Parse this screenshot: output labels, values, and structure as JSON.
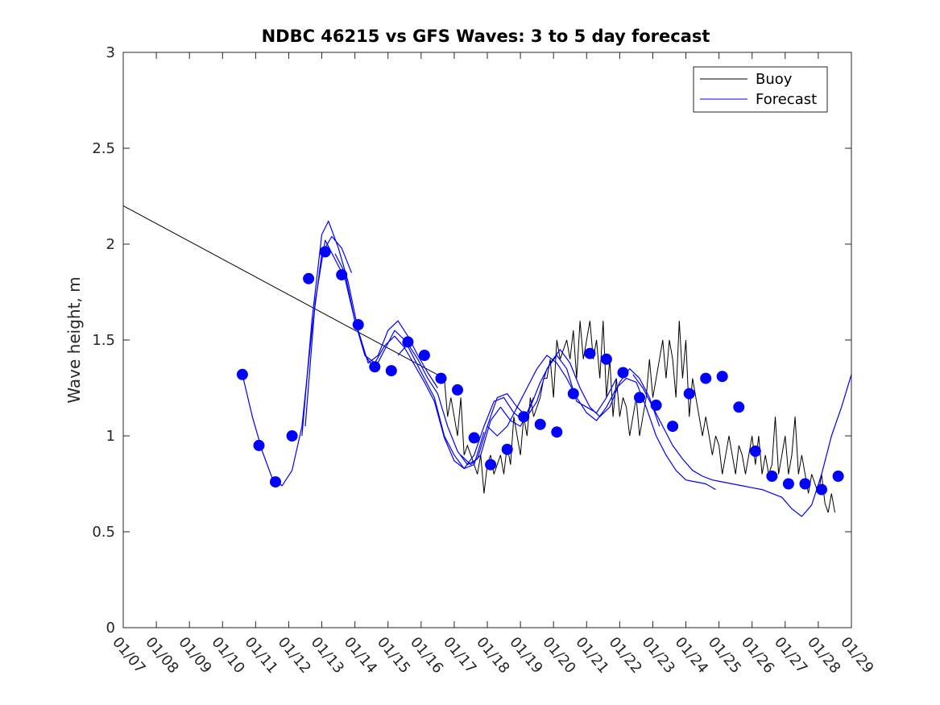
{
  "chart_data": {
    "type": "line",
    "title": "NDBC 46215 vs GFS Waves: 3 to 5 day forecast",
    "ylabel": "Wave height, m",
    "xlabel": "",
    "xlim": [
      0,
      22
    ],
    "ylim": [
      0,
      3
    ],
    "x_tick_values": [
      0,
      1,
      2,
      3,
      4,
      5,
      6,
      7,
      8,
      9,
      10,
      11,
      12,
      13,
      14,
      15,
      16,
      17,
      18,
      19,
      20,
      21,
      22
    ],
    "x_tick_labels": [
      "01/07",
      "01/08",
      "01/09",
      "01/10",
      "01/11",
      "01/12",
      "01/13",
      "01/14",
      "01/15",
      "01/16",
      "01/17",
      "01/18",
      "01/19",
      "01/20",
      "01/21",
      "01/22",
      "01/23",
      "01/24",
      "01/25",
      "01/26",
      "01/27",
      "01/28",
      "01/29"
    ],
    "y_tick_values": [
      0,
      0.5,
      1,
      1.5,
      2,
      2.5,
      3
    ],
    "y_tick_labels": [
      "0",
      "0.5",
      "1",
      "1.5",
      "2",
      "2.5",
      "3"
    ],
    "legend": {
      "location": "top-right",
      "entries": [
        "Buoy",
        "Forecast"
      ]
    },
    "colors": {
      "buoy": "#000000",
      "forecast": "#0000ff",
      "axes": "#262626"
    },
    "series": [
      {
        "name": "Buoy",
        "color": "#000000",
        "x": [
          0,
          9.7,
          9.8,
          9.9,
          10.0,
          10.1,
          10.2,
          10.3,
          10.4,
          10.5,
          10.6,
          10.7,
          10.8,
          10.9,
          11.0,
          11.1,
          11.2,
          11.3,
          11.4,
          11.5,
          11.6,
          11.7,
          11.8,
          11.9,
          12.0,
          12.1,
          12.2,
          12.3,
          12.4,
          12.5,
          12.6,
          12.7,
          12.8,
          12.9,
          13.0,
          13.1,
          13.2,
          13.3,
          13.4,
          13.5,
          13.6,
          13.7,
          13.8,
          13.9,
          14.0,
          14.1,
          14.2,
          14.3,
          14.4,
          14.5,
          14.6,
          14.7,
          14.8,
          14.9,
          15.0,
          15.1,
          15.2,
          15.3,
          15.4,
          15.5,
          15.6,
          15.7,
          15.8,
          15.9,
          16.0,
          16.1,
          16.2,
          16.3,
          16.4,
          16.5,
          16.6,
          16.7,
          16.8,
          16.9,
          17.0,
          17.1,
          17.2,
          17.3,
          17.4,
          17.5,
          17.6,
          17.7,
          17.8,
          17.9,
          18.0,
          18.1,
          18.2,
          18.3,
          18.4,
          18.5,
          18.6,
          18.7,
          18.8,
          18.9,
          19.0,
          19.1,
          19.2,
          19.3,
          19.4,
          19.5,
          19.6,
          19.7,
          19.8,
          19.9,
          20.0,
          20.1,
          20.2,
          20.3,
          20.4,
          20.5,
          20.6,
          20.7,
          20.8,
          20.9,
          21.0,
          21.1,
          21.2,
          21.3,
          21.4,
          21.5
        ],
        "values": [
          2.2,
          1.3,
          1.1,
          1.2,
          1.1,
          1.0,
          1.2,
          0.9,
          0.95,
          0.9,
          0.85,
          0.8,
          0.9,
          0.7,
          0.85,
          0.9,
          0.8,
          0.85,
          0.9,
          0.8,
          0.95,
          0.85,
          1.1,
          1.0,
          0.9,
          1.1,
          1.0,
          1.2,
          1.1,
          1.15,
          1.2,
          1.3,
          1.3,
          1.4,
          1.2,
          1.5,
          1.4,
          1.45,
          1.5,
          1.4,
          1.55,
          1.3,
          1.6,
          1.4,
          1.5,
          1.6,
          1.4,
          1.5,
          1.3,
          1.6,
          1.2,
          1.4,
          1.1,
          1.3,
          1.1,
          1.2,
          1.15,
          1.0,
          1.1,
          1.2,
          1.0,
          1.1,
          1.2,
          1.4,
          1.2,
          1.3,
          1.4,
          1.5,
          1.3,
          1.5,
          1.4,
          1.2,
          1.6,
          1.3,
          1.5,
          1.1,
          1.3,
          1.2,
          1.1,
          1.0,
          1.1,
          1.0,
          0.9,
          1.0,
          0.95,
          0.8,
          0.9,
          1.0,
          0.9,
          0.8,
          0.95,
          0.9,
          0.8,
          0.9,
          1.0,
          0.85,
          1.0,
          0.8,
          0.9,
          0.8,
          0.85,
          1.1,
          0.8,
          0.9,
          1.0,
          0.8,
          0.9,
          1.1,
          0.8,
          0.9,
          0.8,
          0.7,
          0.8,
          0.75,
          0.7,
          0.8,
          0.65,
          0.6,
          0.7,
          0.6
        ]
      },
      {
        "name": "Forecast",
        "color": "#0000ff",
        "lines": [
          {
            "x": [
              3.6,
              3.9,
              4.2,
              4.5,
              4.8,
              5.1,
              5.4,
              5.7,
              6.0,
              6.3,
              6.6,
              6.9
            ],
            "values": [
              1.32,
              1.1,
              0.92,
              0.78,
              0.74,
              0.82,
              1.05,
              1.55,
              1.95,
              2.04,
              1.98,
              1.85
            ]
          },
          {
            "x": [
              5.4,
              5.7,
              6.0,
              6.2,
              6.5,
              6.8,
              7.1,
              7.4,
              7.7,
              8.0,
              8.3,
              8.6,
              8.9,
              9.2,
              9.5
            ],
            "values": [
              1.0,
              1.6,
              2.05,
              2.12,
              1.98,
              1.8,
              1.55,
              1.38,
              1.42,
              1.55,
              1.6,
              1.52,
              1.42,
              1.33,
              1.25
            ]
          },
          {
            "x": [
              5.5,
              5.8,
              6.1,
              6.4,
              6.7,
              7.0,
              7.3,
              7.6,
              7.9,
              8.2,
              8.5,
              8.8,
              9.1,
              9.4,
              9.7,
              10.0,
              10.3,
              10.6,
              10.9
            ],
            "values": [
              1.05,
              1.7,
              2.02,
              1.92,
              1.82,
              1.6,
              1.42,
              1.35,
              1.45,
              1.55,
              1.5,
              1.4,
              1.3,
              1.2,
              1.0,
              0.9,
              0.83,
              0.85,
              1.02
            ]
          },
          {
            "x": [
              6.4,
              6.7,
              7.0,
              7.3,
              7.6,
              7.9,
              8.2,
              8.5,
              8.8,
              9.1,
              9.4,
              9.7,
              10.0,
              10.3,
              10.6,
              10.9,
              11.2,
              11.5,
              11.8,
              12.1,
              12.4
            ],
            "values": [
              1.95,
              1.85,
              1.6,
              1.42,
              1.38,
              1.47,
              1.52,
              1.46,
              1.37,
              1.28,
              1.18,
              0.99,
              0.87,
              0.83,
              0.9,
              1.05,
              1.18,
              1.2,
              1.12,
              1.08,
              1.2
            ]
          },
          {
            "x": [
              8.3,
              8.6,
              8.9,
              9.2,
              9.5,
              9.8,
              10.1,
              10.4,
              10.7,
              11.0,
              11.3,
              11.6,
              11.9,
              12.2,
              12.5,
              12.8,
              13.1,
              13.4,
              13.7,
              14.0,
              14.3,
              14.6,
              14.9
            ],
            "values": [
              1.42,
              1.48,
              1.4,
              1.3,
              1.22,
              1.05,
              0.92,
              0.85,
              0.88,
              1.05,
              1.2,
              1.22,
              1.15,
              1.1,
              1.18,
              1.35,
              1.42,
              1.35,
              1.18,
              1.15,
              1.12,
              1.2,
              1.3
            ]
          },
          {
            "x": [
              10.2,
              10.5,
              10.8,
              11.1,
              11.4,
              11.7,
              12.0,
              12.3,
              12.6,
              12.9,
              13.2,
              13.5,
              13.8,
              14.1,
              14.4,
              14.7,
              15.0,
              15.3,
              15.6,
              15.9,
              16.2
            ],
            "values": [
              0.9,
              0.85,
              0.9,
              1.08,
              1.15,
              1.08,
              1.05,
              1.15,
              1.28,
              1.38,
              1.45,
              1.38,
              1.25,
              1.15,
              1.1,
              1.15,
              1.28,
              1.35,
              1.3,
              1.2,
              1.05
            ]
          },
          {
            "x": [
              11.0,
              11.3,
              11.6,
              11.9,
              12.2,
              12.5,
              12.8,
              13.1,
              13.4,
              13.7,
              14.0,
              14.3,
              14.6,
              14.9,
              15.2,
              15.5,
              15.8,
              16.1,
              16.4,
              16.7,
              17.0,
              17.3,
              17.6,
              17.9
            ],
            "values": [
              1.05,
              1.0,
              1.05,
              1.15,
              1.25,
              1.35,
              1.42,
              1.38,
              1.3,
              1.2,
              1.12,
              1.08,
              1.15,
              1.25,
              1.3,
              1.28,
              1.15,
              1.0,
              0.9,
              0.82,
              0.77,
              0.76,
              0.75,
              0.72
            ]
          },
          {
            "x": [
              15.4,
              15.7,
              16.0,
              16.3,
              16.6,
              16.9,
              17.2,
              17.5,
              17.8,
              18.1,
              18.4,
              18.7,
              19.0,
              19.3,
              19.6,
              19.9,
              20.2,
              20.5,
              20.8,
              21.1,
              21.4,
              21.7,
              22.0
            ],
            "values": [
              1.32,
              1.25,
              1.15,
              1.05,
              0.95,
              0.88,
              0.82,
              0.79,
              0.77,
              0.76,
              0.75,
              0.74,
              0.73,
              0.72,
              0.7,
              0.68,
              0.62,
              0.58,
              0.64,
              0.8,
              1.0,
              1.15,
              1.32
            ]
          }
        ],
        "markers": {
          "x": [
            3.6,
            4.1,
            4.6,
            5.1,
            5.6,
            6.1,
            6.6,
            7.1,
            7.6,
            8.1,
            8.6,
            9.1,
            9.6,
            10.1,
            10.6,
            11.1,
            11.6,
            12.1,
            12.6,
            13.1,
            13.6,
            14.1,
            14.6,
            15.1,
            15.6,
            16.1,
            16.6,
            17.1,
            17.6,
            18.1,
            18.6,
            19.1,
            19.6,
            20.1,
            20.6,
            21.1,
            21.6
          ],
          "values": [
            1.32,
            0.95,
            0.76,
            1.0,
            1.82,
            1.96,
            1.84,
            1.58,
            1.36,
            1.34,
            1.49,
            1.42,
            1.3,
            1.24,
            0.99,
            0.85,
            0.93,
            1.1,
            1.06,
            1.02,
            1.22,
            1.43,
            1.4,
            1.33,
            1.2,
            1.16,
            1.05,
            1.22,
            1.3,
            1.31,
            1.15,
            0.92,
            0.79,
            0.75,
            0.75,
            0.72,
            0.79
          ]
        }
      }
    ]
  }
}
